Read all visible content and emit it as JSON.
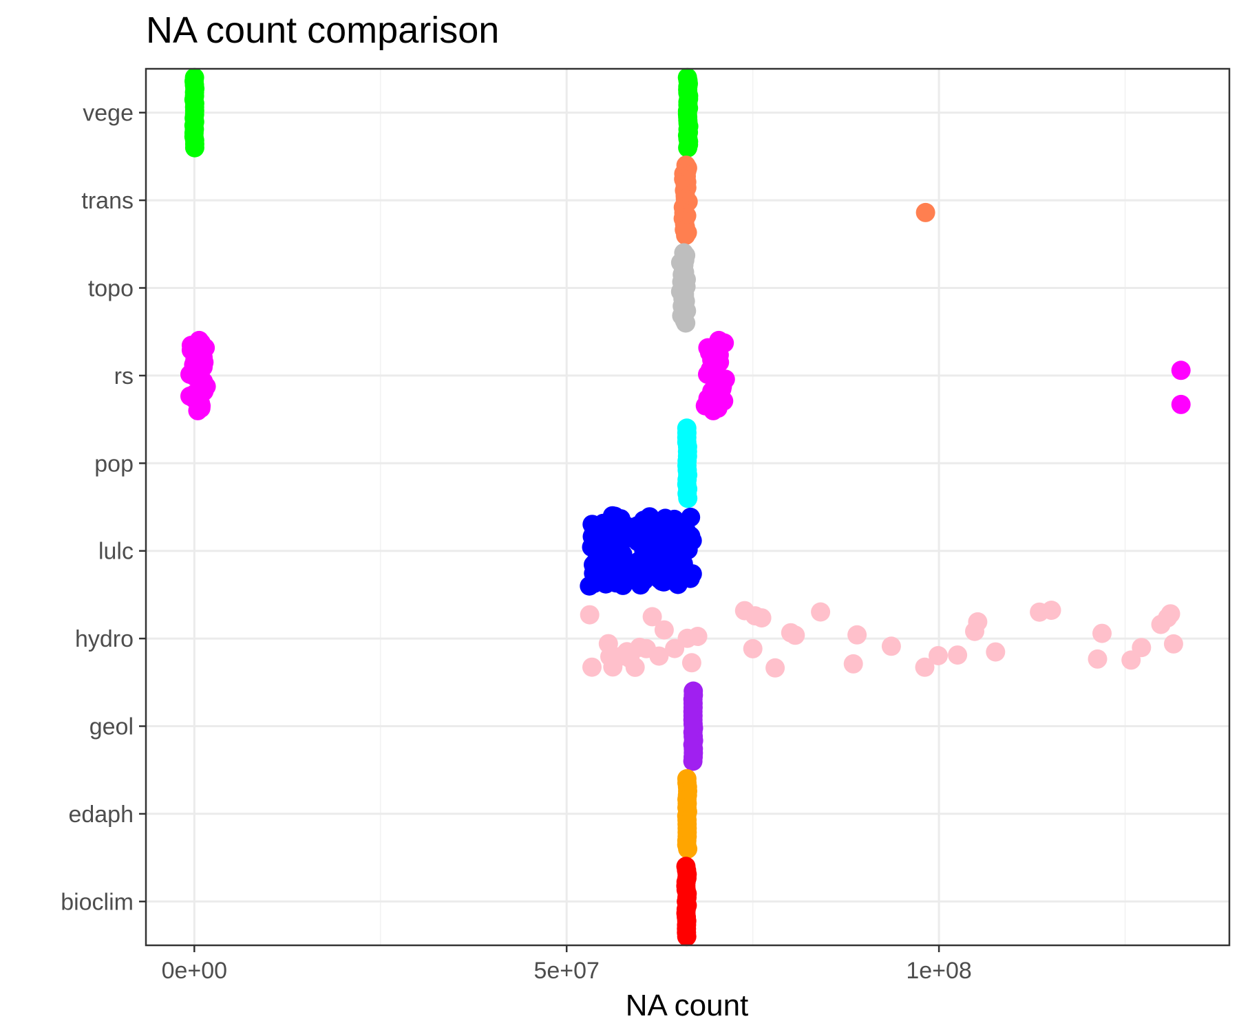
{
  "chart_data": {
    "type": "scatter",
    "title": "NA count comparison",
    "xlabel": "NA count",
    "ylabel": "",
    "xlim": [
      -6500000,
      139000000
    ],
    "x_ticks": [
      0,
      50000000,
      100000000
    ],
    "x_tick_labels": [
      "0e+00",
      "5e+07",
      "1e+08"
    ],
    "categories": [
      "bioclim",
      "edaph",
      "geol",
      "hydro",
      "lulc",
      "pop",
      "rs",
      "topo",
      "trans",
      "vege"
    ],
    "grid": true,
    "legend": "none",
    "series": [
      {
        "category": "vege",
        "color": "#00FF00",
        "clusters": [
          {
            "x": 0,
            "spread": 0.15,
            "count": 20
          },
          {
            "x": 66300000,
            "spread": 0.2,
            "count": 24
          }
        ]
      },
      {
        "category": "trans",
        "color": "#FF7F50",
        "clusters": [
          {
            "x": 66000000,
            "spread": 0.7,
            "count": 26
          }
        ],
        "points": [
          {
            "x": 98200000,
            "dy": -0.14
          }
        ]
      },
      {
        "category": "topo",
        "color": "#BEBEBE",
        "clusters": [
          {
            "x": 65700000,
            "spread": 0.8,
            "count": 30
          }
        ]
      },
      {
        "category": "rs",
        "color": "#FF00FF",
        "clusters": [
          {
            "x": 500000,
            "spread": 2.2,
            "count": 30
          },
          {
            "x": 70000000,
            "spread": 2.8,
            "count": 30
          }
        ],
        "points": [
          {
            "x": 132500000,
            "dy": 0.06
          },
          {
            "x": 132500000,
            "dy": -0.33
          }
        ]
      },
      {
        "category": "pop",
        "color": "#00FFFF",
        "clusters": [
          {
            "x": 66200000,
            "spread": 0.15,
            "count": 16
          }
        ]
      },
      {
        "category": "lulc",
        "color": "#0000FF",
        "clusters": [
          {
            "x": 60000000,
            "spread": 14.0,
            "count": 140
          }
        ]
      },
      {
        "category": "hydro",
        "color": "#FFC0CB",
        "values": [
          53100000,
          53400000,
          55800000,
          55600000,
          56200000,
          57400000,
          58100000,
          58500000,
          59200000,
          59800000,
          60700000,
          61500000,
          62400000,
          63100000,
          64500000,
          66200000,
          66800000,
          67600000,
          73900000,
          75000000,
          75300000,
          76200000,
          78000000,
          80100000,
          80700000,
          84100000,
          88500000,
          89000000,
          93600000,
          98100000,
          99900000,
          102500000,
          104800000,
          105200000,
          107600000,
          113500000,
          115100000,
          121300000,
          121900000,
          125800000,
          127200000,
          129800000,
          130700000,
          131100000,
          131500000
        ]
      },
      {
        "category": "geol",
        "color": "#A020F0",
        "clusters": [
          {
            "x": 67000000,
            "spread": 0.1,
            "count": 18
          }
        ]
      },
      {
        "category": "edaph",
        "color": "#FFA500",
        "clusters": [
          {
            "x": 66200000,
            "spread": 0.15,
            "count": 18
          }
        ]
      },
      {
        "category": "bioclim",
        "color": "#FF0000",
        "clusters": [
          {
            "x": 66100000,
            "spread": 0.2,
            "count": 19
          }
        ]
      }
    ]
  }
}
